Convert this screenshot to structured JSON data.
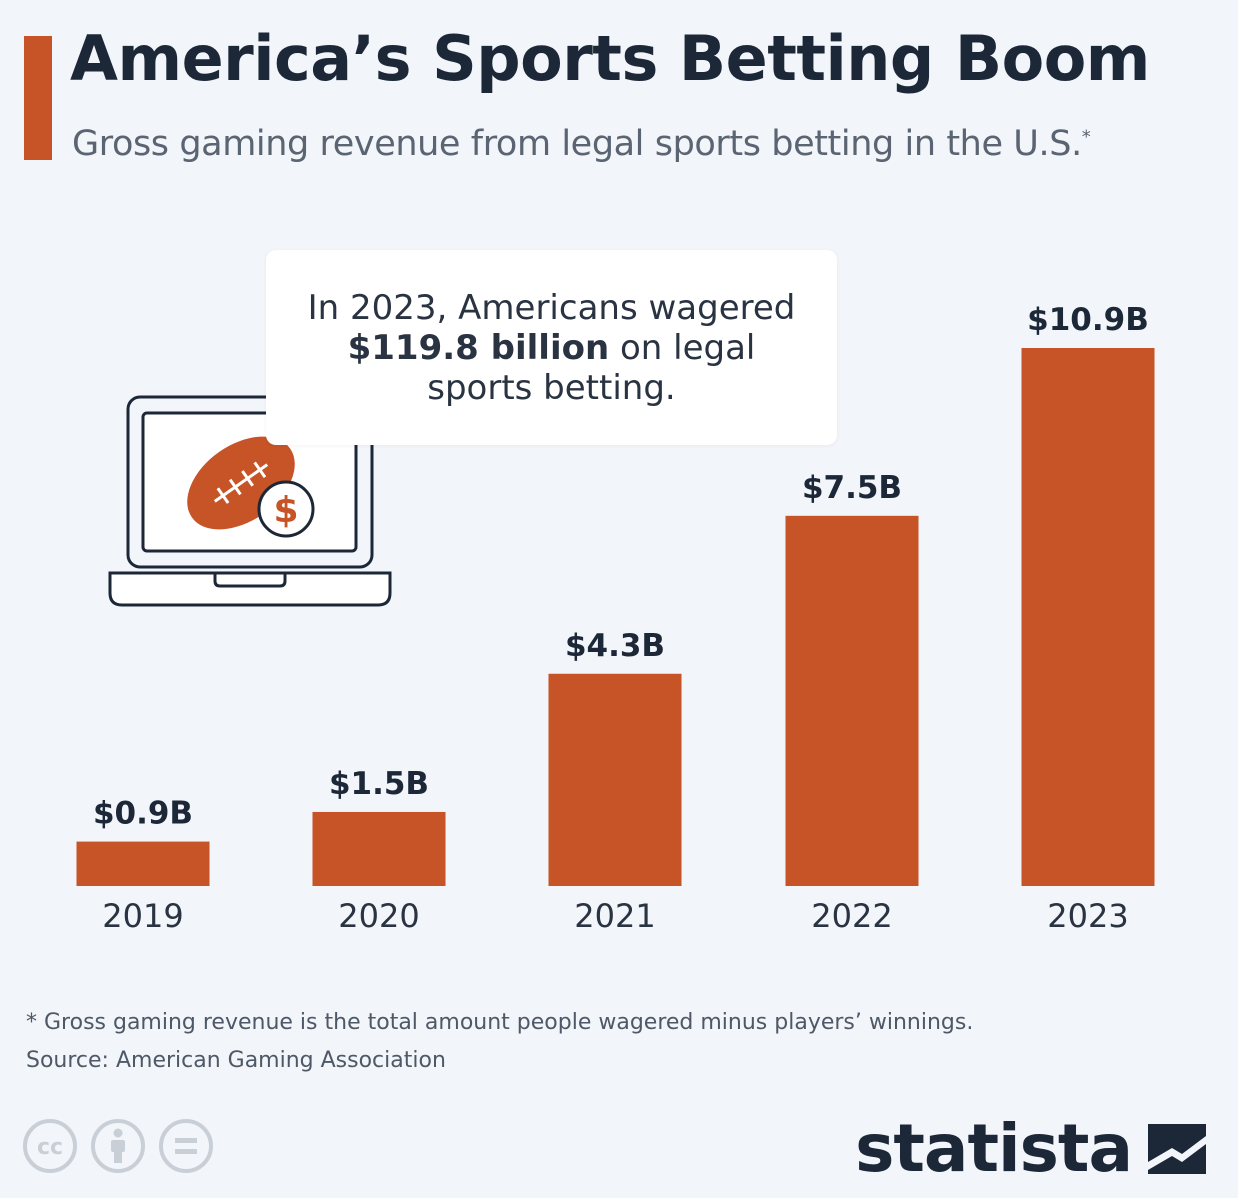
{
  "header": {
    "title": "America’s Sports Betting Boom",
    "subtitle": "Gross gaming revenue from legal sports betting in the U.S.",
    "subtitle_marker": "*"
  },
  "callout": {
    "line1": "In 2023, Americans wagered",
    "bold": "$119.8 billion",
    "line2_rest": " on legal",
    "line3": "sports betting."
  },
  "chart_data": {
    "type": "bar",
    "title": "America’s Sports Betting Boom",
    "subtitle": "Gross gaming revenue from legal sports betting in the U.S.*",
    "categories": [
      "2019",
      "2020",
      "2021",
      "2022",
      "2023"
    ],
    "values": [
      0.9,
      1.5,
      4.3,
      7.5,
      10.9
    ],
    "data_labels": [
      "$0.9B",
      "$1.5B",
      "$4.3B",
      "$7.5B",
      "$10.9B"
    ],
    "unit": "billion USD",
    "ylim": [
      0,
      10.9
    ],
    "grid": false,
    "bar_color": "#c65426"
  },
  "footer": {
    "footnote": "* Gross gaming revenue is the total amount people wagered minus players’ winnings.",
    "source": "Source: American Gaming Association",
    "brand": "statista"
  },
  "icons": {
    "laptop": "laptop-football-dollar-icon",
    "license": [
      "cc-icon",
      "attribution-icon",
      "no-derivatives-icon"
    ],
    "brand": "statista-logo-icon"
  },
  "colors": {
    "accent": "#c65426",
    "title": "#1c2738",
    "subtitle": "#5a6472",
    "background": "#f2f5f9"
  }
}
